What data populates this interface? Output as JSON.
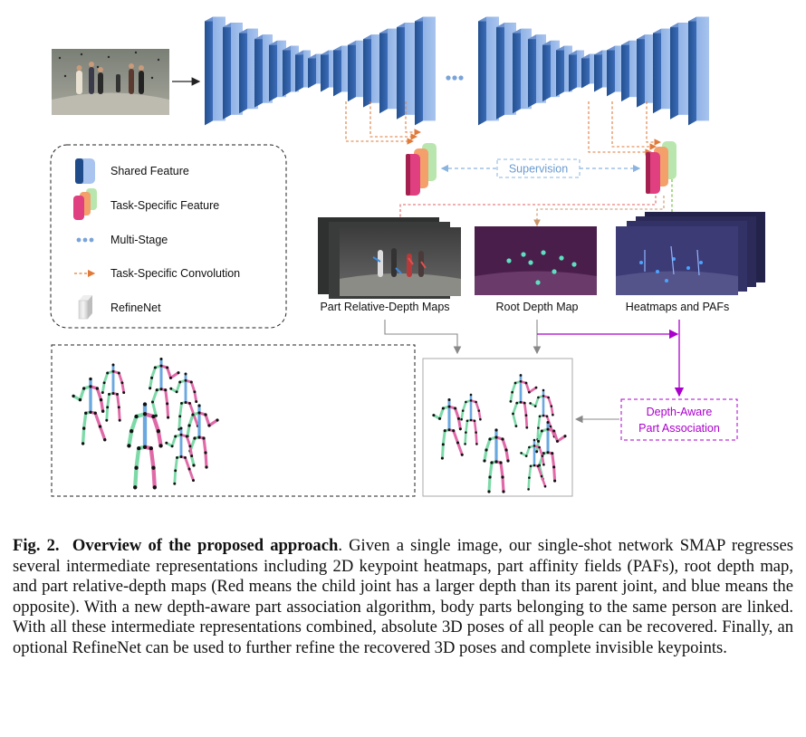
{
  "figure": {
    "legend": {
      "items": [
        {
          "label": "Shared Feature",
          "icon": "shared-feature-block-icon"
        },
        {
          "label": "Task-Specific Feature",
          "icon": "task-specific-feature-block-icon"
        },
        {
          "label": "Multi-Stage",
          "icon": "multi-stage-dots-icon"
        },
        {
          "label": "Task-Specific Convolution",
          "icon": "dashed-orange-arrow-icon"
        },
        {
          "label": "RefineNet",
          "icon": "refinenet-block-icon"
        }
      ]
    },
    "labels": {
      "supervision": "Supervision",
      "part_relative_depth_maps": "Part Relative-Depth  Maps",
      "root_depth_map": "Root Depth Map",
      "heatmaps_and_pafs": "Heatmaps and PAFs",
      "depth_aware_line1": "Depth-Aware",
      "depth_aware_line2": "Part Association"
    },
    "colors": {
      "shared_feature": "#3f6db8",
      "task_pink": "#e0407f",
      "task_orange": "#f08a4b",
      "task_green": "#8fd18a",
      "supervision_blue": "#8ab4df",
      "association_purple": "#aa00cc",
      "limb_blue": "#6aa8e0",
      "limb_pink": "#e06aa8",
      "limb_green": "#7dd9a8"
    }
  },
  "caption": {
    "fig_label": "Fig. 2.",
    "title": "Overview of the proposed approach",
    "text": ". Given a single image, our single-shot network SMAP regresses several intermediate representations including 2D keypoint heatmaps, part affinity fields (PAFs), root depth map, and part relative-depth maps (Red means the child joint has a larger depth than its parent joint, and blue means the opposite). With a new depth-aware part association algorithm, body parts belonging to the same person are linked. With all these intermediate representations combined, absolute 3D poses of all people can be recovered. Finally, an optional RefineNet can be used to further refine the recovered 3D poses and complete invisible keypoints."
  }
}
